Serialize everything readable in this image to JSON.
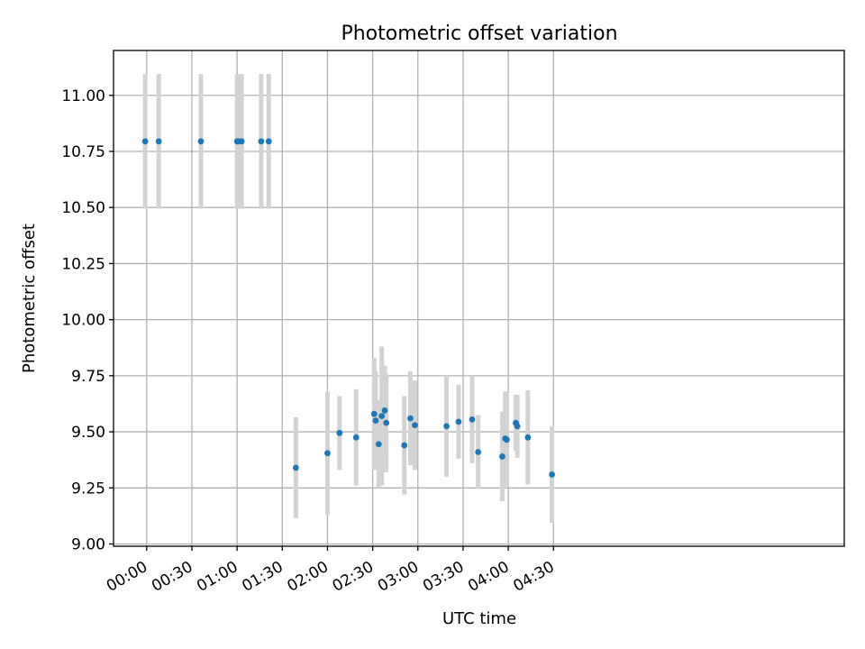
{
  "chart_data": {
    "type": "scatter",
    "title": "Photometric offset variation",
    "xlabel": "UTC time",
    "ylabel": "Photometric offset",
    "grid": true,
    "x_unit": "minutes after 00:00 UTC",
    "xlim": [
      -22,
      463
    ],
    "ylim": [
      8.99,
      11.2
    ],
    "xticks": [
      {
        "value": 0,
        "label": "00:00"
      },
      {
        "value": 30,
        "label": "00:30"
      },
      {
        "value": 60,
        "label": "01:00"
      },
      {
        "value": 90,
        "label": "01:30"
      },
      {
        "value": 120,
        "label": "02:00"
      },
      {
        "value": 150,
        "label": "02:30"
      },
      {
        "value": 180,
        "label": "03:00"
      },
      {
        "value": 210,
        "label": "03:30"
      },
      {
        "value": 240,
        "label": "04:00"
      },
      {
        "value": 270,
        "label": "04:30"
      }
    ],
    "yticks": [
      {
        "value": 9.0,
        "label": "9.00"
      },
      {
        "value": 9.25,
        "label": "9.25"
      },
      {
        "value": 9.5,
        "label": "9.50"
      },
      {
        "value": 9.75,
        "label": "9.75"
      },
      {
        "value": 10.0,
        "label": "10.00"
      },
      {
        "value": 10.25,
        "label": "10.25"
      },
      {
        "value": 10.5,
        "label": "10.50"
      },
      {
        "value": 10.75,
        "label": "10.75"
      },
      {
        "value": 11.0,
        "label": "11.00"
      }
    ],
    "points": [
      {
        "t": -1,
        "y": 10.795,
        "err": 0.3
      },
      {
        "t": 8,
        "y": 10.795,
        "err": 0.3
      },
      {
        "t": 36,
        "y": 10.795,
        "err": 0.3
      },
      {
        "t": 60,
        "y": 10.795,
        "err": 0.3
      },
      {
        "t": 61,
        "y": 10.795,
        "err": 0.3
      },
      {
        "t": 63,
        "y": 10.795,
        "err": 0.3
      },
      {
        "t": 76,
        "y": 10.795,
        "err": 0.3
      },
      {
        "t": 81,
        "y": 10.795,
        "err": 0.3
      },
      {
        "t": 99,
        "y": 9.34,
        "err": 0.225
      },
      {
        "t": 120,
        "y": 9.405,
        "err": 0.275
      },
      {
        "t": 128,
        "y": 9.495,
        "err": 0.165
      },
      {
        "t": 139,
        "y": 9.475,
        "err": 0.215
      },
      {
        "t": 151,
        "y": 9.58,
        "err": 0.25
      },
      {
        "t": 152,
        "y": 9.55,
        "err": 0.22
      },
      {
        "t": 154,
        "y": 9.445,
        "err": 0.195
      },
      {
        "t": 156,
        "y": 9.57,
        "err": 0.31
      },
      {
        "t": 158,
        "y": 9.595,
        "err": 0.2
      },
      {
        "t": 159,
        "y": 9.54,
        "err": 0.22
      },
      {
        "t": 171,
        "y": 9.44,
        "err": 0.22
      },
      {
        "t": 175,
        "y": 9.56,
        "err": 0.21
      },
      {
        "t": 178,
        "y": 9.53,
        "err": 0.2
      },
      {
        "t": 199,
        "y": 9.525,
        "err": 0.225
      },
      {
        "t": 207,
        "y": 9.545,
        "err": 0.165
      },
      {
        "t": 216,
        "y": 9.555,
        "err": 0.195
      },
      {
        "t": 220,
        "y": 9.41,
        "err": 0.165
      },
      {
        "t": 236,
        "y": 9.39,
        "err": 0.2
      },
      {
        "t": 238,
        "y": 9.47,
        "err": 0.21
      },
      {
        "t": 239,
        "y": 9.465,
        "err": 0.21
      },
      {
        "t": 245,
        "y": 9.54,
        "err": 0.125
      },
      {
        "t": 246,
        "y": 9.525,
        "err": 0.14
      },
      {
        "t": 253,
        "y": 9.475,
        "err": 0.21
      },
      {
        "t": 269,
        "y": 9.31,
        "err": 0.215
      }
    ]
  }
}
